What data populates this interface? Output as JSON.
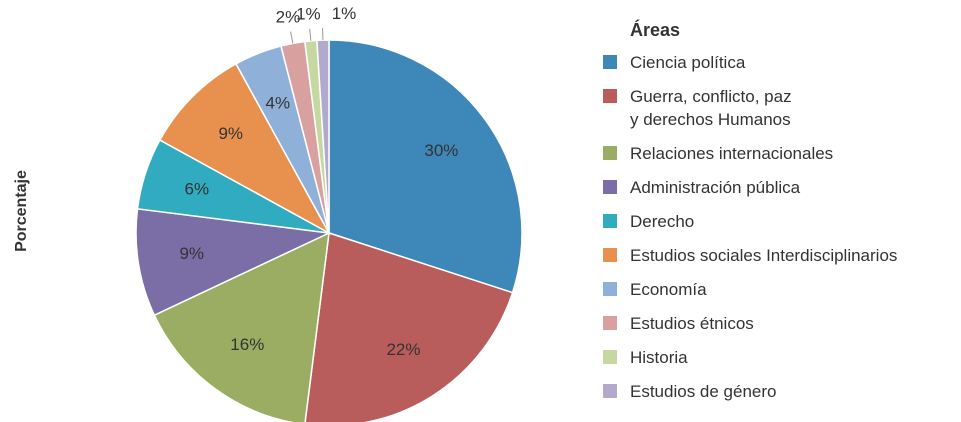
{
  "chart_data": {
    "type": "pie",
    "y_label": "Porcentaje",
    "legend_title": "Áreas",
    "categories": [
      "Ciencia política",
      "Guerra, conflicto, paz\ny derechos Humanos",
      "Relaciones internacionales",
      "Administración pública",
      "Derecho",
      "Estudios sociales Interdisciplinarios",
      "Economía",
      "Estudios étnicos",
      "Historia",
      "Estudios de género"
    ],
    "values": [
      30,
      22,
      16,
      9,
      6,
      9,
      4,
      2,
      1,
      1
    ],
    "value_labels": [
      "30%",
      "22%",
      "16%",
      "9%",
      "6%",
      "9%",
      "4%",
      "2%",
      "1%",
      "1%"
    ],
    "colors": [
      "#3e87b9",
      "#b85c5c",
      "#9aad62",
      "#7b6ea6",
      "#31abc0",
      "#e8914f",
      "#8fb1d9",
      "#d9a0a0",
      "#c5d8a2",
      "#b3a9cc"
    ],
    "legend": "right"
  }
}
